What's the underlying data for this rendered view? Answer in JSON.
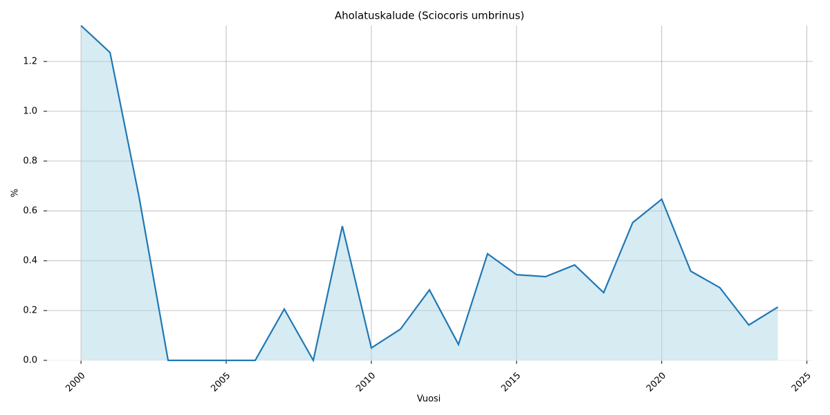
{
  "chart_data": {
    "type": "line",
    "title": "Aholatuskalude (Sciocoris umbrinus)",
    "x_label": "Vuosi",
    "y_label": "%",
    "x": [
      2000,
      2001,
      2002,
      2003,
      2004,
      2005,
      2006,
      2007,
      2008,
      2009,
      2010,
      2011,
      2012,
      2013,
      2014,
      2015,
      2016,
      2017,
      2018,
      2019,
      2020,
      2021,
      2022,
      2023,
      2024
    ],
    "series": [
      {
        "name": "Sciocoris umbrinus",
        "color": "#1f77b4",
        "fill": "#add8e6",
        "values": [
          1.344,
          1.236,
          0.656,
          0,
          0,
          0,
          0,
          0.206,
          0,
          0.539,
          0.05,
          0.125,
          0.283,
          0.064,
          0.428,
          0.344,
          0.336,
          0.383,
          0.272,
          0.553,
          0.647,
          0.358,
          0.292,
          0.142,
          0.214
        ]
      }
    ],
    "xlim": [
      1998.83,
      2025.2
    ],
    "xticks": [
      2000,
      2005,
      2010,
      2015,
      2020,
      2025
    ],
    "ylim": [
      0,
      1.344
    ],
    "yticks": [
      {
        "value": 0,
        "label": "0.0"
      },
      0.2,
      0.4,
      0.6,
      0.8,
      {
        "value": 1,
        "label": "1.0"
      },
      1.2
    ],
    "grid": true
  }
}
